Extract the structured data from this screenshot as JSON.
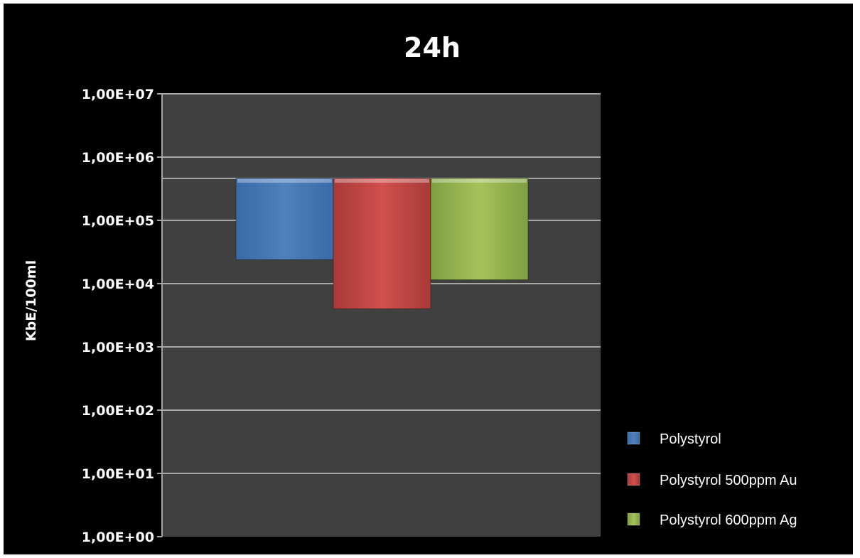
{
  "chart_data": {
    "type": "bar",
    "subtype": "floating-range",
    "title": "24h",
    "xlabel": "",
    "ylabel": "KbE/100ml",
    "yscale": "log",
    "ylim": [
      1,
      10000000
    ],
    "yticks": [
      "1,00E+00",
      "1,00E+01",
      "1,00E+02",
      "1,00E+03",
      "1,00E+04",
      "1,00E+05",
      "1,00E+06",
      "1,00E+07"
    ],
    "grid": true,
    "legend_position": "bottom-right",
    "series": [
      {
        "name": "Polystyrol",
        "low": 24000,
        "high": 460000,
        "color": "#4f81bd"
      },
      {
        "name": "Polystyrol 500ppm Au",
        "low": 4000,
        "high": 460000,
        "color": "#c0504d"
      },
      {
        "name": "Polystyrol 600ppm Ag",
        "low": 11500,
        "high": 460000,
        "color": "#9bbb59"
      }
    ],
    "colors": {
      "background": "#000000",
      "plot_area": "#404040",
      "grid": "#a6a6a6",
      "text": "#ffffff"
    }
  }
}
